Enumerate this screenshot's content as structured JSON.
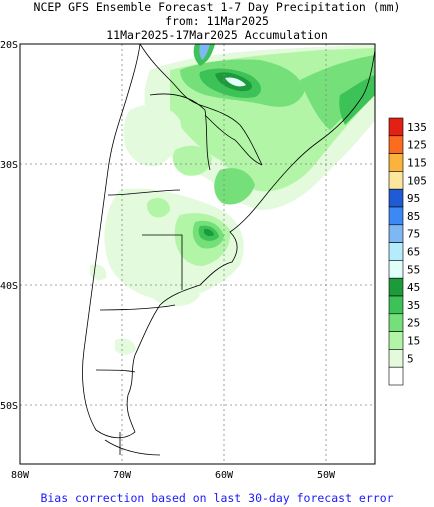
{
  "title": {
    "line1": "NCEP GFS Ensemble Forecast 1-7 Day Precipitation (mm)",
    "line2": "from: 11Mar2025",
    "line3": "11Mar2025-17Mar2025 Accumulation"
  },
  "footer": "Bias correction based on last 30-day forecast error",
  "axes": {
    "lat_labels": [
      "20S",
      "30S",
      "40S",
      "50S"
    ],
    "lon_labels": [
      "80W",
      "70W",
      "60W",
      "50W"
    ]
  },
  "legend": {
    "levels": [
      {
        "label": "135",
        "color": "#e32014"
      },
      {
        "label": "125",
        "color": "#fb6c1f"
      },
      {
        "label": "115",
        "color": "#fcb33c"
      },
      {
        "label": "105",
        "color": "#fde79c"
      },
      {
        "label": "95",
        "color": "#1f5bd6"
      },
      {
        "label": "85",
        "color": "#3c89f5"
      },
      {
        "label": "75",
        "color": "#7db8f5"
      },
      {
        "label": "65",
        "color": "#b4ecfb"
      },
      {
        "label": "55",
        "color": "#e0fffb"
      },
      {
        "label": "45",
        "color": "#1d9a3a"
      },
      {
        "label": "35",
        "color": "#3cc257"
      },
      {
        "label": "25",
        "color": "#75e07a"
      },
      {
        "label": "15",
        "color": "#b2f5a7"
      },
      {
        "label": "5",
        "color": "#e3fadc"
      },
      {
        "label": "",
        "color": "#ffffff"
      }
    ]
  }
}
